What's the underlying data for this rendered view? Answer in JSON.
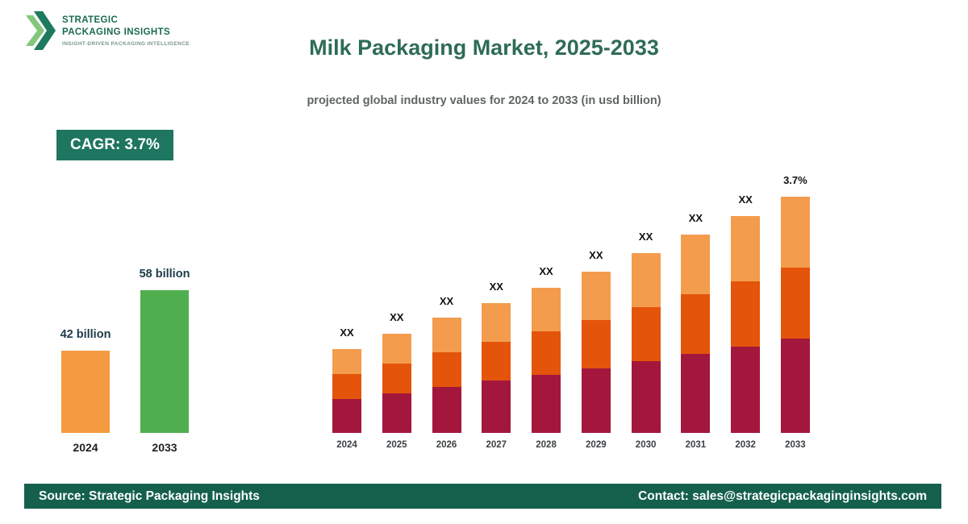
{
  "logo": {
    "name_line1": "STRATEGIC",
    "name_line2": "PACKAGING INSIGHTS",
    "tagline": "INSIGHT-DRIVEN PACKAGING INTELLIGENCE"
  },
  "header": {
    "title": "Milk Packaging Market, 2025-2033",
    "subtitle": "projected global industry values for 2024 to 2033 (in usd billion)"
  },
  "cagr_badge": {
    "label": "CAGR: 3.7%"
  },
  "footer": {
    "source": "Source: Strategic Packaging Insights",
    "contact": "Contact: sales@strategicpackaginginsights.com"
  },
  "colors": {
    "brand_dark_green": "#14604C",
    "title_green": "#2E6B58",
    "badge_green": "#1E7560",
    "summary_bar_2024": "#F59A40",
    "summary_bar_2033": "#4FAE4E",
    "stack_bottom": "#A3173D",
    "stack_middle": "#E4540A",
    "stack_top": "#F49C4E"
  },
  "chart_data": [
    {
      "type": "bar",
      "title": "Market size 2024 vs 2033",
      "unit": "usd billion",
      "categories": [
        "2024",
        "2033"
      ],
      "values": [
        42,
        58
      ],
      "value_labels": [
        "42 billion",
        "58 billion"
      ],
      "bar_colors": [
        "#F59A40",
        "#4FAE4E"
      ],
      "ylim": [
        20,
        58
      ],
      "grid": false,
      "legend": "none"
    },
    {
      "type": "bar",
      "stacked": true,
      "title": "Milk Packaging Market projection 2024-2033",
      "unit": "usd billion",
      "categories": [
        "2024",
        "2025",
        "2026",
        "2027",
        "2028",
        "2029",
        "2030",
        "2031",
        "2032",
        "2033"
      ],
      "series": [
        {
          "name": "bottom",
          "color": "#A3173D",
          "values": [
            16.8,
            17.4,
            18.1,
            18.8,
            19.4,
            20.2,
            20.9,
            21.7,
            22.5,
            23.3
          ]
        },
        {
          "name": "middle",
          "color": "#E4540A",
          "values": [
            12.6,
            13.1,
            13.6,
            14.1,
            14.6,
            15.1,
            15.7,
            16.3,
            16.9,
            17.5
          ]
        },
        {
          "name": "top",
          "color": "#F49C4E",
          "values": [
            12.6,
            13.1,
            13.6,
            14.1,
            14.6,
            15.1,
            15.7,
            16.3,
            16.9,
            17.5
          ]
        }
      ],
      "totals_estimated": [
        42,
        43.6,
        45.3,
        47,
        48.6,
        50.4,
        52.3,
        54.3,
        56.3,
        58.3
      ],
      "bar_top_labels": [
        "XX",
        "XX",
        "XX",
        "XX",
        "XX",
        "XX",
        "XX",
        "XX",
        "XX",
        "3.7%"
      ],
      "cagr": "3.7%",
      "ylim": [
        33,
        59
      ],
      "grid": false,
      "legend": "none"
    }
  ]
}
